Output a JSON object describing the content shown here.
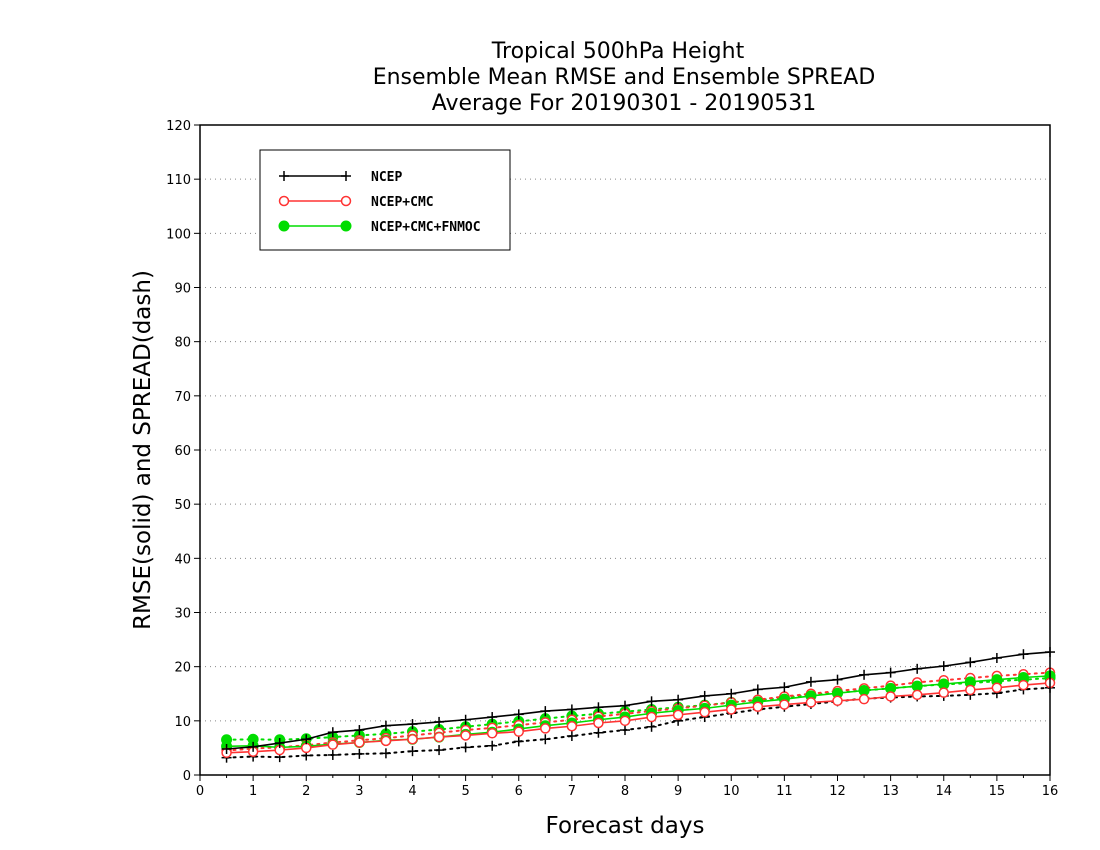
{
  "chart_data": {
    "type": "line",
    "title": [
      "Tropical 500hPa Height",
      "Ensemble Mean RMSE and Ensemble SPREAD",
      "Average For 20190301 - 20190531"
    ],
    "xlabel": "Forecast days",
    "ylabel": "RMSE(solid) and SPREAD(dash)",
    "xlim": [
      0,
      16
    ],
    "ylim": [
      0,
      120
    ],
    "x_ticks": [
      "0",
      "1",
      "2",
      "3",
      "4",
      "5",
      "6",
      "7",
      "8",
      "9",
      "10",
      "11",
      "12",
      "13",
      "14",
      "15",
      "16"
    ],
    "y_ticks": [
      "0",
      "10",
      "20",
      "30",
      "40",
      "50",
      "60",
      "70",
      "80",
      "90",
      "100",
      "110",
      "120"
    ],
    "grid": true,
    "legend_position": "top-left",
    "x": [
      0.5,
      1,
      1.5,
      2,
      2.5,
      3,
      3.5,
      4,
      4.5,
      5,
      5.5,
      6,
      6.5,
      7,
      7.5,
      8,
      8.5,
      9,
      9.5,
      10,
      10.5,
      11,
      11.5,
      12,
      12.5,
      13,
      13.5,
      14,
      14.5,
      15,
      15.5,
      16
    ],
    "series": [
      {
        "name": "NCEP",
        "color": "#000000",
        "marker": "plus",
        "rmse": [
          4.8,
          5.2,
          5.9,
          6.6,
          7.9,
          8.3,
          9.1,
          9.4,
          9.8,
          10.2,
          10.7,
          11.2,
          11.8,
          12.1,
          12.5,
          12.8,
          13.6,
          13.9,
          14.6,
          15.0,
          15.8,
          16.2,
          17.2,
          17.6,
          18.5,
          18.9,
          19.6,
          20.1,
          20.8,
          21.6,
          22.3,
          22.7
        ],
        "spread": [
          3.2,
          3.4,
          3.3,
          3.6,
          3.7,
          3.9,
          4.0,
          4.4,
          4.6,
          5.1,
          5.4,
          6.2,
          6.6,
          7.2,
          7.8,
          8.3,
          8.9,
          10.0,
          10.7,
          11.4,
          12.1,
          12.6,
          13.1,
          13.6,
          14.1,
          14.3,
          14.5,
          14.6,
          14.8,
          15.1,
          15.8,
          16.1
        ]
      },
      {
        "name": "NCEP+CMC",
        "color": "#ff3333",
        "marker": "open-circle",
        "rmse": [
          4.1,
          4.3,
          4.6,
          5.0,
          5.6,
          6.0,
          6.3,
          6.6,
          7.0,
          7.3,
          7.7,
          8.0,
          8.6,
          9.0,
          9.6,
          10.0,
          10.7,
          11.1,
          11.6,
          12.1,
          12.6,
          13.0,
          13.4,
          13.7,
          14.0,
          14.5,
          14.8,
          15.2,
          15.7,
          16.1,
          16.6,
          17.0
        ],
        "spread": [
          4.5,
          4.9,
          5.1,
          5.5,
          6.0,
          6.4,
          6.8,
          7.3,
          7.8,
          8.3,
          8.7,
          9.2,
          9.7,
          10.2,
          10.8,
          11.3,
          11.8,
          12.3,
          12.8,
          13.4,
          13.9,
          14.5,
          15.0,
          15.5,
          16.0,
          16.5,
          17.1,
          17.5,
          17.9,
          18.3,
          18.6,
          18.9
        ]
      },
      {
        "name": "NCEP+CMC+FNMOC",
        "color": "#00dd00",
        "marker": "filled-circle",
        "rmse": [
          5.3,
          5.4,
          5.1,
          5.3,
          5.7,
          6.0,
          6.4,
          6.6,
          7.0,
          7.5,
          7.9,
          8.5,
          9.1,
          9.6,
          10.2,
          10.7,
          11.4,
          11.9,
          12.3,
          12.9,
          13.5,
          14.0,
          14.6,
          15.1,
          15.6,
          16.0,
          16.4,
          16.8,
          17.2,
          17.6,
          18.0,
          18.3
        ],
        "spread": [
          6.5,
          6.6,
          6.5,
          6.7,
          7.0,
          7.3,
          7.6,
          8.0,
          8.4,
          8.9,
          9.4,
          9.9,
          10.4,
          10.9,
          11.3,
          11.7,
          12.1,
          12.5,
          12.9,
          13.4,
          13.8,
          14.3,
          14.8,
          15.2,
          15.6,
          16.0,
          16.4,
          16.7,
          17.0,
          17.3,
          17.6,
          17.9
        ]
      }
    ]
  }
}
